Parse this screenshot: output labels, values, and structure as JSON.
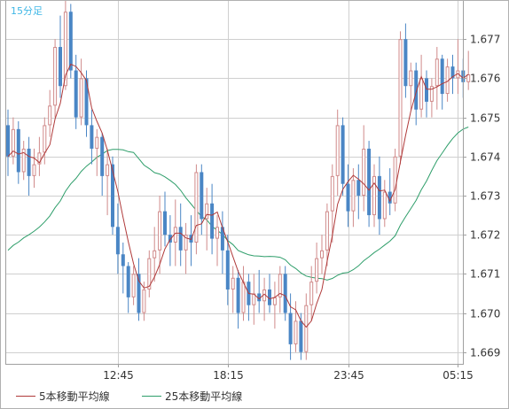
{
  "chart_data": {
    "type": "candlestick",
    "timeframe_label": "15分足",
    "x_ticks": [
      "12:45",
      "18:15",
      "23:45",
      "05:15"
    ],
    "ylim": [
      1.6687,
      1.678
    ],
    "y_ticks": [
      "1.677",
      "1.676",
      "1.675",
      "1.674",
      "1.673",
      "1.672",
      "1.671",
      "1.670",
      "1.669"
    ],
    "grid": true,
    "colors": {
      "up": "#d08a8a",
      "down": "#4a86c5",
      "ma5": "#b03a3a",
      "ma25": "#2e9e6a",
      "grid": "#cfcfcf",
      "frame": "#a0a0a0"
    },
    "legend_position": "bottom-left",
    "series": [
      {
        "name": "5本移動平均線",
        "key": "ma5"
      },
      {
        "name": "25本移動平均線",
        "key": "ma25"
      }
    ],
    "candles": [
      [
        1.6748,
        1.6752,
        1.6735,
        1.674
      ],
      [
        1.674,
        1.675,
        1.6738,
        1.6747
      ],
      [
        1.6747,
        1.6749,
        1.6733,
        1.6736
      ],
      [
        1.6736,
        1.6744,
        1.6734,
        1.6742
      ],
      [
        1.6742,
        1.6745,
        1.673,
        1.6735
      ],
      [
        1.6735,
        1.6742,
        1.6732,
        1.6738
      ],
      [
        1.6738,
        1.6745,
        1.6735,
        1.6741
      ],
      [
        1.6741,
        1.675,
        1.6738,
        1.6748
      ],
      [
        1.6748,
        1.6757,
        1.6745,
        1.6753
      ],
      [
        1.6753,
        1.677,
        1.675,
        1.6768
      ],
      [
        1.6768,
        1.6776,
        1.6755,
        1.6758
      ],
      [
        1.6758,
        1.678,
        1.6757,
        1.6777
      ],
      [
        1.6777,
        1.6779,
        1.676,
        1.6762
      ],
      [
        1.6762,
        1.6766,
        1.6747,
        1.675
      ],
      [
        1.675,
        1.6765,
        1.6748,
        1.676
      ],
      [
        1.676,
        1.6762,
        1.6745,
        1.6748
      ],
      [
        1.6748,
        1.6752,
        1.6738,
        1.6742
      ],
      [
        1.6742,
        1.6747,
        1.6735,
        1.6745
      ],
      [
        1.6745,
        1.6746,
        1.673,
        1.6735
      ],
      [
        1.6735,
        1.6742,
        1.6725,
        1.6738
      ],
      [
        1.6738,
        1.674,
        1.672,
        1.6722
      ],
      [
        1.6722,
        1.6728,
        1.671,
        1.6715
      ],
      [
        1.6715,
        1.6718,
        1.6705,
        1.6712
      ],
      [
        1.6712,
        1.6713,
        1.67,
        1.6704
      ],
      [
        1.6704,
        1.6712,
        1.6702,
        1.671
      ],
      [
        1.671,
        1.6714,
        1.6698,
        1.67
      ],
      [
        1.67,
        1.6708,
        1.6698,
        1.6706
      ],
      [
        1.6706,
        1.6716,
        1.6704,
        1.6714
      ],
      [
        1.6714,
        1.6722,
        1.6708,
        1.6716
      ],
      [
        1.6716,
        1.673,
        1.671,
        1.6726
      ],
      [
        1.6726,
        1.6731,
        1.6717,
        1.672
      ],
      [
        1.672,
        1.6725,
        1.6712,
        1.6718
      ],
      [
        1.6718,
        1.6729,
        1.6712,
        1.6722
      ],
      [
        1.6722,
        1.6728,
        1.6712,
        1.6716
      ],
      [
        1.6716,
        1.6723,
        1.671,
        1.672
      ],
      [
        1.672,
        1.6725,
        1.6712,
        1.6718
      ],
      [
        1.6718,
        1.6738,
        1.6715,
        1.6736
      ],
      [
        1.6736,
        1.6738,
        1.672,
        1.6724
      ],
      [
        1.6724,
        1.6732,
        1.6716,
        1.6728
      ],
      [
        1.6728,
        1.6733,
        1.6715,
        1.6719
      ],
      [
        1.6719,
        1.6725,
        1.6712,
        1.6722
      ],
      [
        1.6722,
        1.6726,
        1.671,
        1.6716
      ],
      [
        1.6716,
        1.672,
        1.6702,
        1.6706
      ],
      [
        1.6706,
        1.6712,
        1.67,
        1.6709
      ],
      [
        1.6709,
        1.6711,
        1.6696,
        1.67
      ],
      [
        1.67,
        1.6712,
        1.6698,
        1.6708
      ],
      [
        1.6708,
        1.671,
        1.6698,
        1.6702
      ],
      [
        1.6702,
        1.671,
        1.6697,
        1.6705
      ],
      [
        1.6705,
        1.6711,
        1.67,
        1.6703
      ],
      [
        1.6703,
        1.6709,
        1.6698,
        1.6706
      ],
      [
        1.6706,
        1.671,
        1.67,
        1.6702
      ],
      [
        1.6702,
        1.6708,
        1.6696,
        1.6704
      ],
      [
        1.6704,
        1.6712,
        1.67,
        1.671
      ],
      [
        1.671,
        1.6712,
        1.6698,
        1.67
      ],
      [
        1.67,
        1.6705,
        1.6688,
        1.6692
      ],
      [
        1.6692,
        1.6703,
        1.669,
        1.6698
      ],
      [
        1.6698,
        1.67,
        1.6688,
        1.669
      ],
      [
        1.669,
        1.6705,
        1.6688,
        1.6702
      ],
      [
        1.6702,
        1.6712,
        1.6698,
        1.6708
      ],
      [
        1.6708,
        1.6718,
        1.6705,
        1.6714
      ],
      [
        1.6714,
        1.672,
        1.671,
        1.6716
      ],
      [
        1.6716,
        1.6728,
        1.6712,
        1.6726
      ],
      [
        1.6726,
        1.6738,
        1.6718,
        1.6735
      ],
      [
        1.6735,
        1.6752,
        1.673,
        1.6748
      ],
      [
        1.6748,
        1.675,
        1.673,
        1.6733
      ],
      [
        1.6733,
        1.6738,
        1.6722,
        1.6726
      ],
      [
        1.6726,
        1.6737,
        1.6722,
        1.6734
      ],
      [
        1.6734,
        1.6738,
        1.6724,
        1.673
      ],
      [
        1.673,
        1.6748,
        1.6726,
        1.6742
      ],
      [
        1.6742,
        1.6744,
        1.6722,
        1.6725
      ],
      [
        1.6725,
        1.6738,
        1.6722,
        1.6735
      ],
      [
        1.6735,
        1.674,
        1.672,
        1.6724
      ],
      [
        1.6724,
        1.6734,
        1.6722,
        1.6731
      ],
      [
        1.6731,
        1.6737,
        1.6725,
        1.6728
      ],
      [
        1.6728,
        1.6742,
        1.6726,
        1.674
      ],
      [
        1.674,
        1.6772,
        1.6738,
        1.677
      ],
      [
        1.677,
        1.6774,
        1.6755,
        1.6758
      ],
      [
        1.6758,
        1.6764,
        1.6752,
        1.6762
      ],
      [
        1.6762,
        1.6764,
        1.6748,
        1.6752
      ],
      [
        1.6752,
        1.6766,
        1.675,
        1.676
      ],
      [
        1.676,
        1.6762,
        1.675,
        1.6754
      ],
      [
        1.6754,
        1.676,
        1.675,
        1.6758
      ],
      [
        1.6758,
        1.6768,
        1.6752,
        1.6765
      ],
      [
        1.6765,
        1.6766,
        1.6752,
        1.6756
      ],
      [
        1.6756,
        1.6765,
        1.6754,
        1.6763
      ],
      [
        1.6763,
        1.6766,
        1.6756,
        1.676
      ],
      [
        1.676,
        1.677,
        1.6756,
        1.6762
      ],
      [
        1.6762,
        1.6765,
        1.6755,
        1.6759
      ],
      [
        1.6759,
        1.6767,
        1.6757,
        1.6761
      ]
    ]
  }
}
